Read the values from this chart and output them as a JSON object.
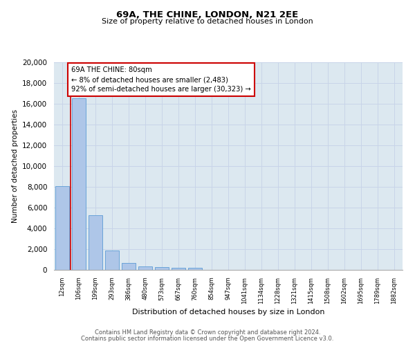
{
  "title_line1": "69A, THE CHINE, LONDON, N21 2EE",
  "title_line2": "Size of property relative to detached houses in London",
  "xlabel": "Distribution of detached houses by size in London",
  "ylabel": "Number of detached properties",
  "categories": [
    "12sqm",
    "106sqm",
    "199sqm",
    "293sqm",
    "386sqm",
    "480sqm",
    "573sqm",
    "667sqm",
    "760sqm",
    "854sqm",
    "947sqm",
    "1041sqm",
    "1134sqm",
    "1228sqm",
    "1321sqm",
    "1415sqm",
    "1508sqm",
    "1602sqm",
    "1695sqm",
    "1789sqm",
    "1882sqm"
  ],
  "values": [
    8100,
    16500,
    5300,
    1850,
    700,
    350,
    280,
    200,
    170,
    0,
    0,
    0,
    0,
    0,
    0,
    0,
    0,
    0,
    0,
    0,
    0
  ],
  "bar_color": "#aec6e8",
  "bar_edge_color": "#5b9bd5",
  "marker_color": "#cc0000",
  "annotation_text": "69A THE CHINE: 80sqm\n← 8% of detached houses are smaller (2,483)\n92% of semi-detached houses are larger (30,323) →",
  "annotation_box_color": "#ffffff",
  "annotation_box_edge": "#cc0000",
  "ylim": [
    0,
    20000
  ],
  "yticks": [
    0,
    2000,
    4000,
    6000,
    8000,
    10000,
    12000,
    14000,
    16000,
    18000,
    20000
  ],
  "grid_color": "#c8d4e8",
  "bg_color": "#dce8f0",
  "footer_line1": "Contains HM Land Registry data © Crown copyright and database right 2024.",
  "footer_line2": "Contains public sector information licensed under the Open Government Licence v3.0."
}
